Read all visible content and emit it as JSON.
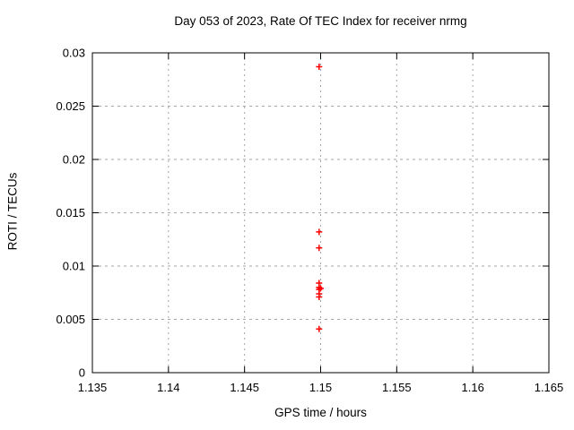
{
  "chart_data": {
    "type": "scatter",
    "title": "Day 053 of 2023, Rate Of TEC Index for receiver nrmg",
    "xlabel": "GPS time / hours",
    "ylabel": "ROTI / TECUs",
    "xlim": [
      1.135,
      1.165
    ],
    "ylim": [
      0,
      0.03
    ],
    "x_ticks": [
      1.135,
      1.14,
      1.145,
      1.15,
      1.155,
      1.16,
      1.165
    ],
    "x_tick_labels": [
      "1.135",
      "1.14",
      "1.145",
      "1.15",
      "1.155",
      "1.16",
      "1.165"
    ],
    "y_ticks": [
      0,
      0.005,
      0.01,
      0.015,
      0.02,
      0.025,
      0.03
    ],
    "y_tick_labels": [
      "0",
      "0.005",
      "0.01",
      "0.015",
      "0.02",
      "0.025",
      "0.03"
    ],
    "grid": "dashed",
    "legend": "none",
    "marker": "plus",
    "series": [
      {
        "name": "ROTI",
        "points": [
          {
            "x": 1.1499,
            "y": 0.0287
          },
          {
            "x": 1.1499,
            "y": 0.0132
          },
          {
            "x": 1.1499,
            "y": 0.0117
          },
          {
            "x": 1.1499,
            "y": 0.0084
          },
          {
            "x": 1.1499,
            "y": 0.008
          },
          {
            "x": 1.15,
            "y": 0.0079
          },
          {
            "x": 1.1499,
            "y": 0.0078
          },
          {
            "x": 1.1499,
            "y": 0.0074
          },
          {
            "x": 1.1499,
            "y": 0.0071
          },
          {
            "x": 1.1499,
            "y": 0.0041
          }
        ]
      }
    ],
    "colors": {
      "marker": "#ff0000",
      "grid": "#a6a6a6",
      "border": "#000000",
      "text": "#000000",
      "background": "#ffffff"
    }
  }
}
